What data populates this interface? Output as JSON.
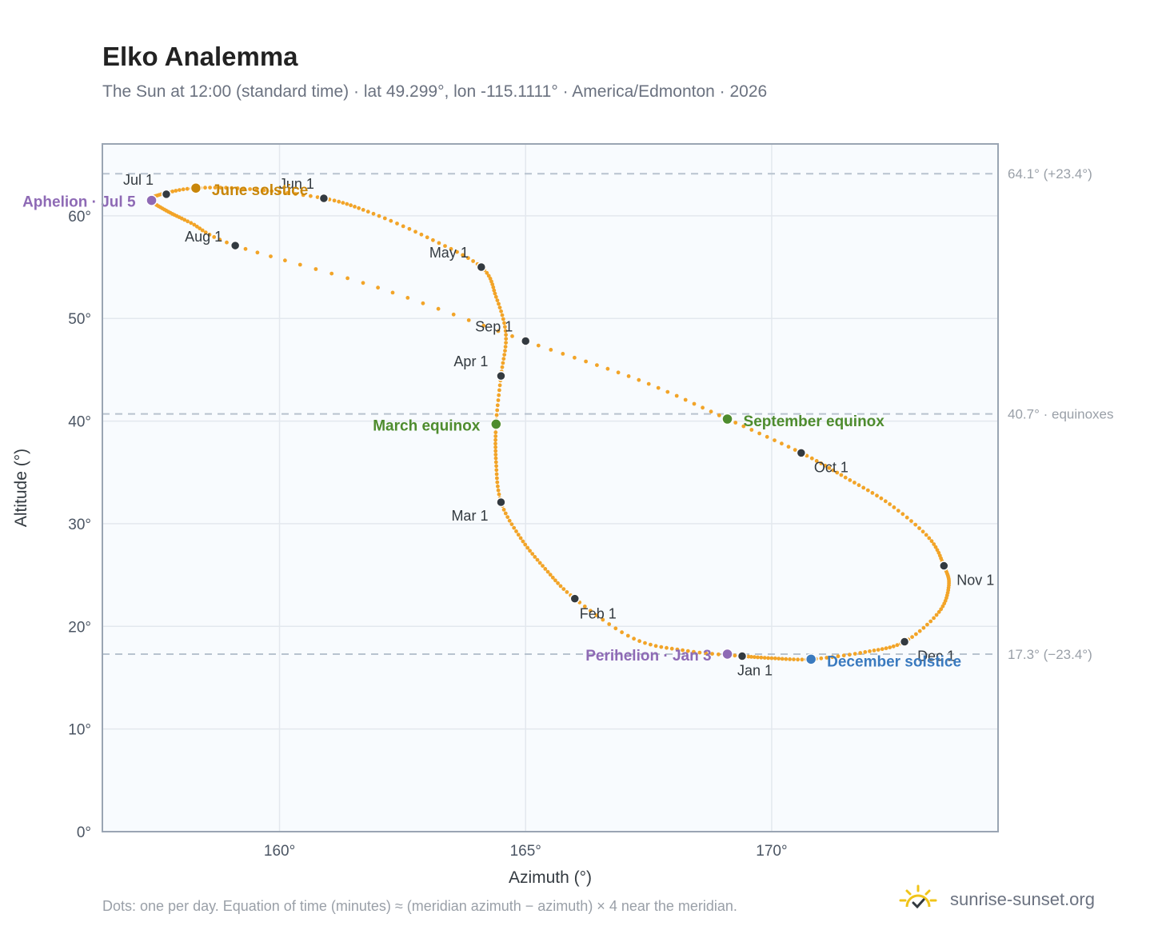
{
  "header": {
    "title": "Elko Analemma",
    "subtitle": "The Sun at 12:00 (standard time) · lat 49.299°, lon -115.1111° · America/Edmonton · 2026"
  },
  "footer": {
    "note": "Dots: one per day. Equation of time (minutes) ≈ (meridian azimuth − azimuth) × 4 near the meridian.",
    "brand": "sunrise-sunset.org"
  },
  "colors": {
    "analemma": "#f2a428",
    "month_marker": "#333a40",
    "solstice_june": "#c8860a",
    "equinox": "#4e8c2e",
    "apsis": "#8e6ab5",
    "solstice_december": "#3a7abf",
    "reference_line": "#b8c3cf",
    "plot_bg": "#f8fbfe",
    "grid": "#e3e8ee",
    "frame": "#9aa5b3"
  },
  "chart_data": {
    "type": "scatter",
    "xlabel": "Azimuth (°)",
    "ylabel": "Altitude (°)",
    "xlim": [
      156.4,
      174.6
    ],
    "ylim": [
      0,
      67
    ],
    "xticks": [
      160,
      165,
      170
    ],
    "xtick_labels": [
      "160°",
      "165°",
      "170°"
    ],
    "yticks": [
      0,
      10,
      20,
      30,
      40,
      50,
      60
    ],
    "ytick_labels": [
      "0°",
      "10°",
      "20°",
      "30°",
      "40°",
      "50°",
      "60°"
    ],
    "grid": true,
    "reference_lines": [
      {
        "y": 64.1,
        "label": "64.1° (+23.4°)"
      },
      {
        "y": 40.7,
        "label": "40.7° · equinoxes"
      },
      {
        "y": 17.3,
        "label": "17.3° (−23.4°)"
      }
    ],
    "daily_path": [
      [
        169.4,
        17.1
      ],
      [
        168.3,
        17.6
      ],
      [
        167.2,
        18.8
      ],
      [
        166.0,
        22.7
      ],
      [
        165.4,
        25.6
      ],
      [
        164.9,
        28.6
      ],
      [
        164.5,
        32.1
      ],
      [
        164.4,
        36.0
      ],
      [
        164.4,
        39.7
      ],
      [
        164.5,
        44.4
      ],
      [
        164.6,
        48.4
      ],
      [
        164.4,
        52.1
      ],
      [
        164.1,
        55.0
      ],
      [
        163.0,
        57.9
      ],
      [
        161.8,
        60.4
      ],
      [
        160.9,
        61.7
      ],
      [
        159.4,
        62.6
      ],
      [
        158.3,
        62.7
      ],
      [
        157.6,
        62.1
      ],
      [
        157.4,
        61.5
      ],
      [
        157.7,
        60.5
      ],
      [
        158.2,
        59.3
      ],
      [
        159.1,
        57.1
      ],
      [
        162.0,
        53.0
      ],
      [
        165.0,
        47.8
      ],
      [
        167.3,
        44.0
      ],
      [
        169.1,
        40.2
      ],
      [
        170.6,
        36.9
      ],
      [
        171.5,
        34.5
      ],
      [
        172.4,
        31.9
      ],
      [
        173.2,
        28.6
      ],
      [
        173.5,
        25.9
      ],
      [
        173.6,
        24.0
      ],
      [
        173.4,
        21.4
      ],
      [
        172.7,
        18.5
      ],
      [
        171.9,
        17.5
      ],
      [
        170.8,
        16.8
      ],
      [
        170.0,
        16.9
      ],
      [
        169.4,
        17.1
      ]
    ],
    "month_markers": [
      {
        "label": "Jan 1",
        "x": 169.4,
        "y": 17.1
      },
      {
        "label": "Feb 1",
        "x": 166.0,
        "y": 22.7
      },
      {
        "label": "Mar 1",
        "x": 164.5,
        "y": 32.1
      },
      {
        "label": "Apr 1",
        "x": 164.5,
        "y": 44.4
      },
      {
        "label": "May 1",
        "x": 164.1,
        "y": 55.0
      },
      {
        "label": "Jun 1",
        "x": 160.9,
        "y": 61.7
      },
      {
        "label": "Jul 1",
        "x": 157.7,
        "y": 62.1
      },
      {
        "label": "Aug 1",
        "x": 159.1,
        "y": 57.1
      },
      {
        "label": "Sep 1",
        "x": 165.0,
        "y": 47.8
      },
      {
        "label": "Oct 1",
        "x": 170.6,
        "y": 36.9
      },
      {
        "label": "Nov 1",
        "x": 173.5,
        "y": 25.9
      },
      {
        "label": "Dec 1",
        "x": 172.7,
        "y": 18.5
      }
    ],
    "events": [
      {
        "label": "June solstice",
        "x": 158.3,
        "y": 62.7,
        "kind": "solstice_june"
      },
      {
        "label": "March equinox",
        "x": 164.4,
        "y": 39.7,
        "kind": "equinox"
      },
      {
        "label": "September equinox",
        "x": 169.1,
        "y": 40.2,
        "kind": "equinox"
      },
      {
        "label": "December solstice",
        "x": 170.8,
        "y": 16.8,
        "kind": "solstice_december"
      },
      {
        "label": "Aphelion · Jul 5",
        "x": 157.4,
        "y": 61.5,
        "kind": "apsis"
      },
      {
        "label": "Perihelion · Jan 3",
        "x": 169.1,
        "y": 17.3,
        "kind": "apsis"
      }
    ]
  }
}
